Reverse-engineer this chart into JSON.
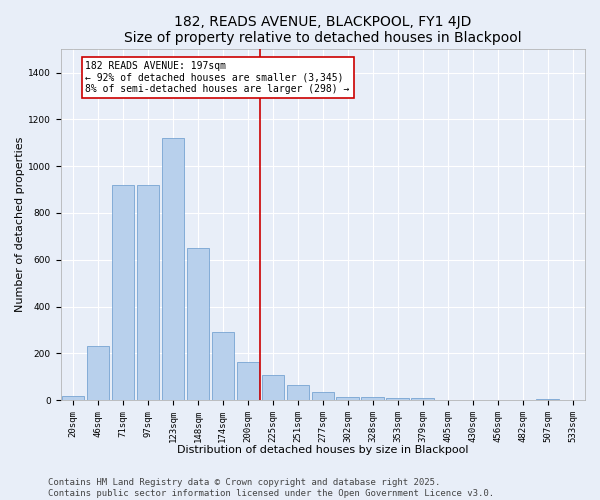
{
  "title": "182, READS AVENUE, BLACKPOOL, FY1 4JD",
  "subtitle": "Size of property relative to detached houses in Blackpool",
  "xlabel": "Distribution of detached houses by size in Blackpool",
  "ylabel": "Number of detached properties",
  "categories": [
    "20sqm",
    "46sqm",
    "71sqm",
    "97sqm",
    "123sqm",
    "148sqm",
    "174sqm",
    "200sqm",
    "225sqm",
    "251sqm",
    "277sqm",
    "302sqm",
    "328sqm",
    "353sqm",
    "379sqm",
    "405sqm",
    "430sqm",
    "456sqm",
    "482sqm",
    "507sqm",
    "533sqm"
  ],
  "values": [
    20,
    230,
    920,
    920,
    1120,
    650,
    290,
    165,
    110,
    65,
    35,
    15,
    15,
    10,
    10,
    0,
    0,
    0,
    0,
    5,
    0
  ],
  "bar_color": "#b8d0ec",
  "bar_edgecolor": "#6699cc",
  "background_color": "#e8eef8",
  "grid_color": "#ffffff",
  "vline_x": 7.5,
  "vline_color": "#cc0000",
  "annotation_text": "182 READS AVENUE: 197sqm\n← 92% of detached houses are smaller (3,345)\n8% of semi-detached houses are larger (298) →",
  "annotation_box_color": "#cc0000",
  "footer": "Contains HM Land Registry data © Crown copyright and database right 2025.\nContains public sector information licensed under the Open Government Licence v3.0.",
  "ylim": [
    0,
    1500
  ],
  "title_fontsize": 10,
  "xlabel_fontsize": 8,
  "ylabel_fontsize": 8,
  "tick_fontsize": 6.5,
  "annotation_fontsize": 7,
  "footer_fontsize": 6.5
}
